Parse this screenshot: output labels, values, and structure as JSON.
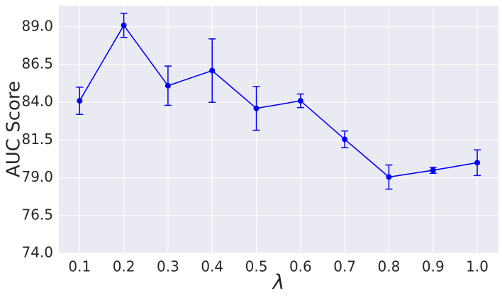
{
  "chart_data": {
    "type": "line",
    "x_label": "λ",
    "y_label": "AUC Score",
    "x": [
      0.1,
      0.2,
      0.3,
      0.4,
      0.5,
      0.6,
      0.7,
      0.8,
      0.9,
      1.0
    ],
    "series": [
      {
        "color": "#0000ff",
        "values": [
          84.1,
          89.1,
          85.1,
          86.1,
          83.6,
          84.1,
          81.55,
          79.05,
          79.5,
          80.0
        ],
        "errors": [
          0.9,
          0.8,
          1.3,
          2.1,
          1.45,
          0.45,
          0.55,
          0.8,
          0.2,
          0.85
        ]
      }
    ],
    "xlim": [
      0.053,
      1.048
    ],
    "xticks": [
      0.1,
      0.2,
      0.3,
      0.4,
      0.5,
      0.6,
      0.7,
      0.8,
      0.9,
      {
        "value": 1.0,
        "label": "1.0"
      }
    ],
    "ylim": [
      74,
      90.4
    ],
    "yticks": [
      {
        "value": 74,
        "label": "74.0"
      },
      {
        "value": 76.5,
        "label": "76.5"
      },
      {
        "value": 79,
        "label": "79.0"
      },
      {
        "value": 81.5,
        "label": "81.5"
      },
      {
        "value": 84,
        "label": "84.0"
      },
      {
        "value": 86.5,
        "label": "86.5"
      },
      {
        "value": 89,
        "label": "89.0"
      }
    ],
    "grid": true
  }
}
